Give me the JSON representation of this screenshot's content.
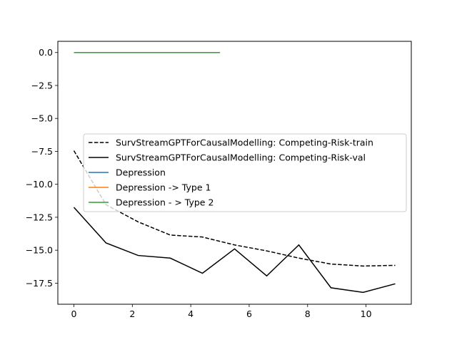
{
  "chart_data": {
    "type": "line",
    "title": "",
    "xlabel": "",
    "ylabel": "",
    "xlim": [
      -0.55,
      11.55
    ],
    "ylim": [
      -19.1,
      0.85
    ],
    "xticks": [
      0,
      2,
      4,
      6,
      8,
      10
    ],
    "yticks": [
      0.0,
      -2.5,
      -5.0,
      -7.5,
      -10.0,
      -12.5,
      -15.0,
      -17.5
    ],
    "xtick_labels": [
      "0",
      "2",
      "4",
      "6",
      "8",
      "10"
    ],
    "ytick_labels": [
      "0.0",
      "−2.5",
      "−5.0",
      "−7.5",
      "−10.0",
      "−12.5",
      "−15.0",
      "−17.5"
    ],
    "grid": false,
    "legend_position": "center-left",
    "series": [
      {
        "name": "SurvStreamGPTForCausalModelling: Competing-Risk-train",
        "color": "#000000",
        "dash": "dashed",
        "x": [
          0,
          1.1,
          2.2,
          3.3,
          4.4,
          5.5,
          6.6,
          7.7,
          8.8,
          9.9,
          11.0
        ],
        "y": [
          -7.45,
          -11.55,
          -12.85,
          -13.85,
          -14.0,
          -14.6,
          -15.05,
          -15.6,
          -16.05,
          -16.2,
          -16.15
        ]
      },
      {
        "name": "SurvStreamGPTForCausalModelling: Competing-Risk-val",
        "color": "#000000",
        "dash": "solid",
        "x": [
          0,
          1.1,
          2.2,
          3.3,
          4.4,
          5.5,
          6.6,
          7.7,
          8.8,
          9.9,
          11.0
        ],
        "y": [
          -11.75,
          -14.45,
          -15.4,
          -15.6,
          -16.75,
          -14.9,
          -16.95,
          -14.6,
          -17.85,
          -18.2,
          -17.55
        ]
      },
      {
        "name": "Depression",
        "color": "#1f77b4",
        "dash": "solid",
        "x": [
          0,
          5.0
        ],
        "y": [
          0,
          0
        ]
      },
      {
        "name": "Depression -> Type 1",
        "color": "#ff7f0e",
        "dash": "solid",
        "x": [
          0,
          5.0
        ],
        "y": [
          0,
          0
        ]
      },
      {
        "name": "Depression - > Type 2",
        "color": "#2ca02c",
        "dash": "solid",
        "x": [
          0,
          5.0
        ],
        "y": [
          0,
          0
        ]
      }
    ]
  }
}
